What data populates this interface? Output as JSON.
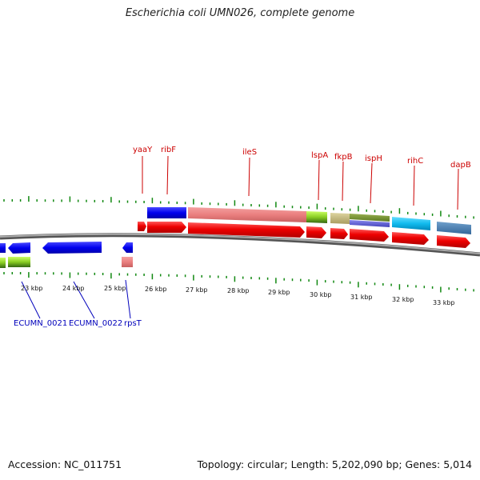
{
  "title": "Escherichia coli UMN026, complete genome",
  "accession_text": "Accession: NC_011751",
  "summary_text": "Topology: circular; Length: 5,202,090 bp; Genes: 5,014",
  "colors": {
    "gene_label_top": "#cc0000",
    "gene_label_bottom": "#0000bb",
    "ticks": "#118811",
    "backbone": "#888888",
    "cds": "#ee0000",
    "blue_feature": "#0000ee"
  },
  "kbp_labels": [
    "23 kbp",
    "24 kbp",
    "25 kbp",
    "26 kbp",
    "27 kbp",
    "28 kbp",
    "29 kbp",
    "30 kbp",
    "31 kbp",
    "32 kbp",
    "33 kbp"
  ],
  "genes_top": [
    {
      "label": "yaaY"
    },
    {
      "label": "ribF"
    },
    {
      "label": "ileS"
    },
    {
      "label": "lspA"
    },
    {
      "label": "fkpB"
    },
    {
      "label": "ispH"
    },
    {
      "label": "rihC"
    },
    {
      "label": "dapB"
    }
  ],
  "genes_bottom": [
    {
      "label": "ECUMN_0021"
    },
    {
      "label": "ECUMN_0022"
    },
    {
      "label": "rpsT"
    }
  ]
}
